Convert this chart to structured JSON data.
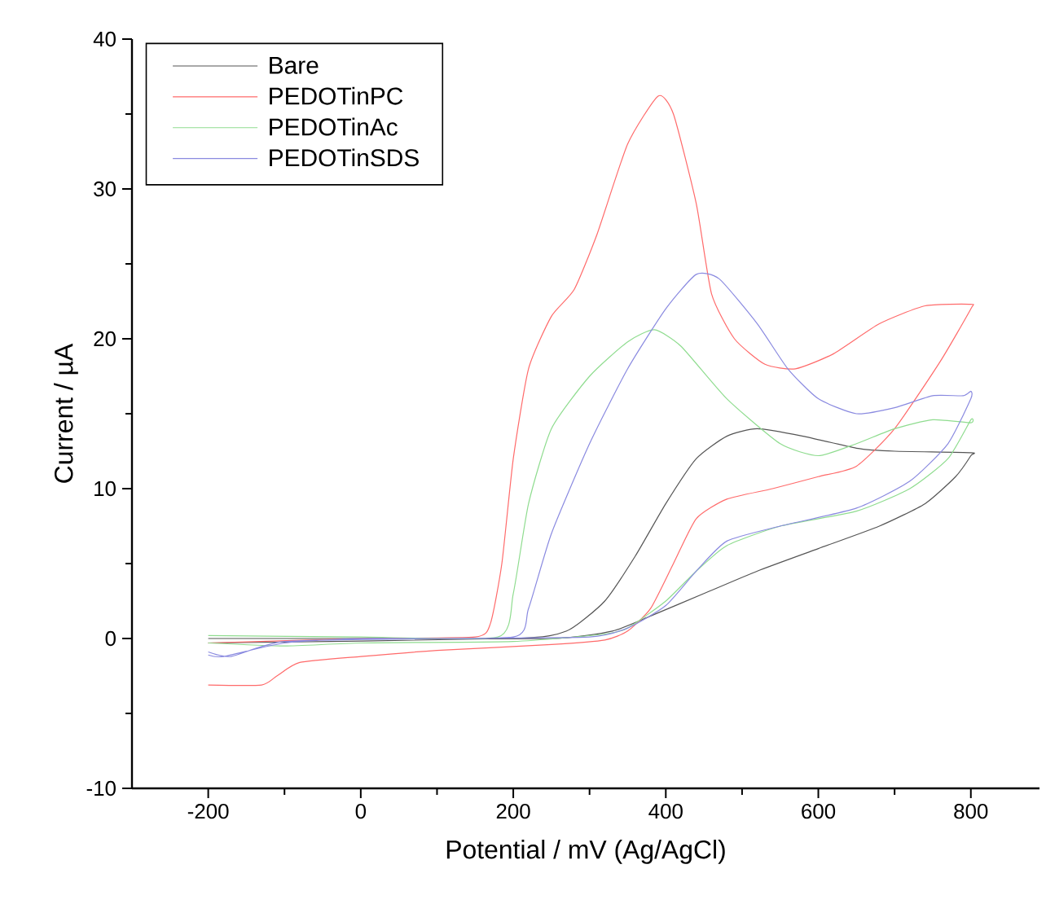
{
  "chart_data": {
    "type": "line",
    "xlabel": "Potential / mV (Ag/AgCl)",
    "ylabel": "Current / µA",
    "xlim": [
      -300,
      890
    ],
    "ylim": [
      -10,
      40
    ],
    "xticks": [
      -200,
      0,
      200,
      400,
      600,
      800
    ],
    "yticks": [
      -10,
      0,
      10,
      20,
      30,
      40
    ],
    "legend": "top left",
    "marker": "none",
    "line_style": "solid",
    "grid": false,
    "series": [
      {
        "name": "Bare",
        "color": "#555555",
        "x": [
          -200,
          200,
          270,
          320,
          360,
          400,
          440,
          480,
          520,
          580,
          650,
          700,
          800,
          800,
          780,
          740,
          680,
          600,
          520,
          450,
          380,
          330,
          250,
          0,
          -200
        ],
        "values": [
          -0.3,
          0,
          0.5,
          2.5,
          5.5,
          9,
          12,
          13.5,
          14,
          13.5,
          12.7,
          12.5,
          12.4,
          12.2,
          10.8,
          9,
          7.5,
          6,
          4.5,
          3,
          1.5,
          0.5,
          0,
          0,
          0
        ]
      },
      {
        "name": "PEDOTinPC",
        "color": "#ff6a6a",
        "x": [
          -200,
          0,
          150,
          170,
          185,
          200,
          220,
          250,
          280,
          310,
          350,
          390,
          410,
          440,
          460,
          490,
          530,
          570,
          620,
          680,
          740,
          800,
          800,
          760,
          700,
          650,
          600,
          540,
          480,
          440,
          410,
          380,
          350,
          320,
          250,
          100,
          0,
          -80,
          -110,
          -130,
          -200
        ],
        "values": [
          -0.3,
          0,
          0.1,
          1,
          5,
          12,
          18,
          21.5,
          23.3,
          27,
          33,
          36.2,
          35,
          29,
          23,
          20,
          18.3,
          18,
          19,
          21,
          22.2,
          22.3,
          22,
          18.5,
          14,
          11.5,
          10.8,
          10,
          9.3,
          8,
          5,
          2,
          0.5,
          -0.1,
          -0.4,
          -0.8,
          -1.2,
          -1.6,
          -2.5,
          -3.1,
          -3.1
        ]
      },
      {
        "name": "PEDOTinAc",
        "color": "#8fdc8f",
        "x": [
          -200,
          0,
          180,
          200,
          220,
          250,
          300,
          350,
          385,
          420,
          480,
          550,
          600,
          650,
          700,
          750,
          800,
          800,
          770,
          720,
          650,
          550,
          480,
          440,
          400,
          350,
          320,
          200,
          0,
          -100,
          -200
        ],
        "values": [
          0.2,
          0.1,
          0.1,
          3,
          9,
          14,
          17.5,
          19.8,
          20.6,
          19.5,
          16,
          13,
          12.2,
          13,
          14,
          14.6,
          14.4,
          14.6,
          12,
          10,
          8.5,
          7.5,
          6.2,
          4.5,
          2.5,
          0.7,
          0.3,
          -0.2,
          -0.3,
          -0.5,
          -0.3
        ]
      },
      {
        "name": "PEDOTinSDS",
        "color": "#8a8ae0",
        "x": [
          -200,
          -180,
          -100,
          0,
          200,
          220,
          250,
          300,
          350,
          400,
          440,
          470,
          520,
          560,
          600,
          650,
          700,
          750,
          790,
          800,
          800,
          770,
          720,
          650,
          550,
          480,
          440,
          400,
          350,
          300,
          100,
          -100,
          -170,
          -200
        ],
        "values": [
          -1.1,
          -1.2,
          -0.3,
          0,
          0.1,
          2,
          7,
          13,
          18,
          22,
          24.3,
          24,
          21,
          18,
          16,
          15,
          15.4,
          16.2,
          16.2,
          16.5,
          16,
          13,
          10.5,
          8.7,
          7.5,
          6.5,
          4.5,
          2.2,
          0.7,
          0.1,
          0,
          -0.2,
          -1.2,
          -0.9
        ]
      }
    ]
  }
}
